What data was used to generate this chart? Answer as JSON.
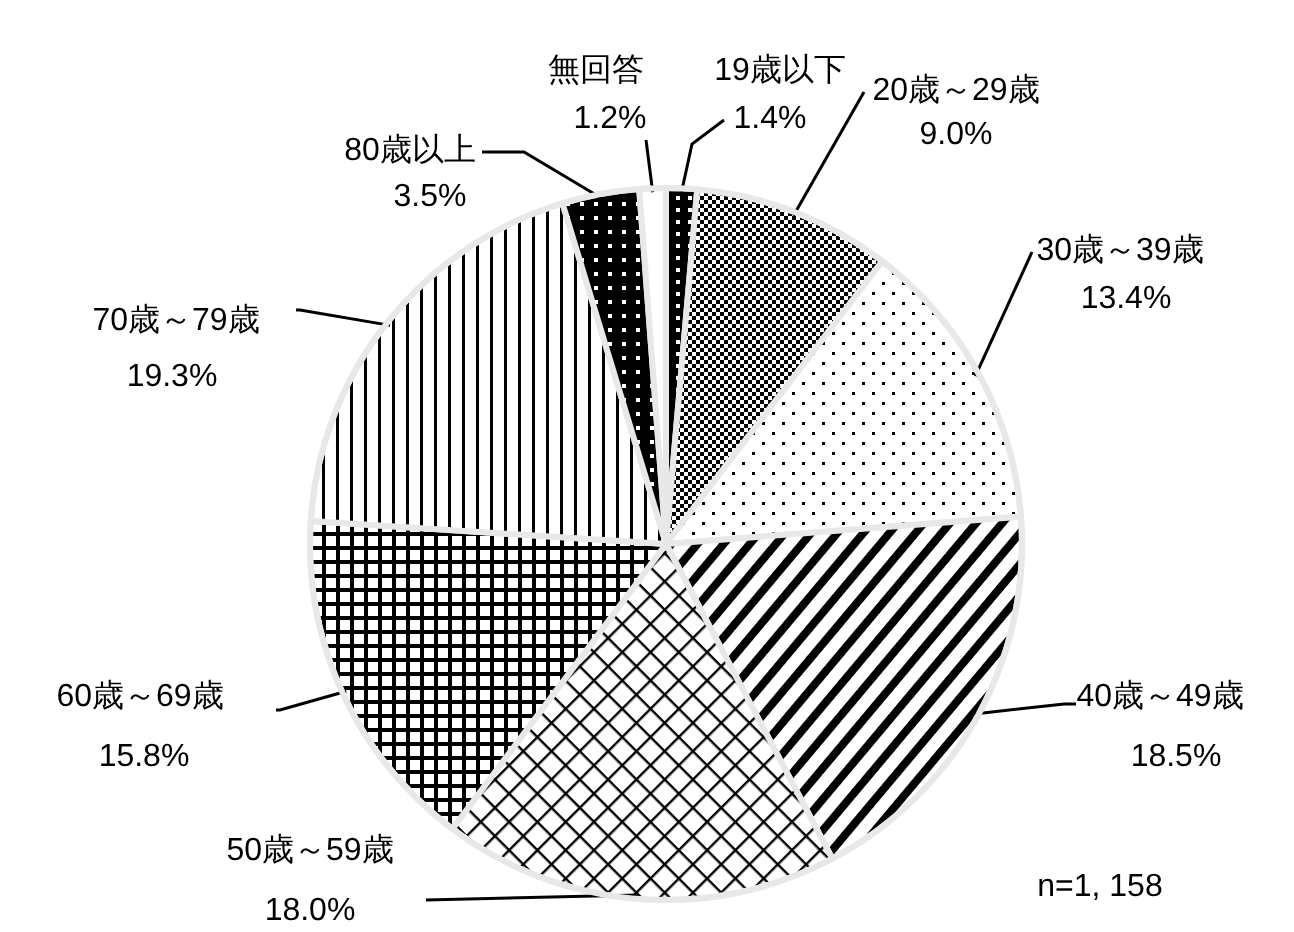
{
  "chart_data": {
    "type": "pie",
    "categories": [
      "19歳以下",
      "20歳～29歳",
      "30歳～39歳",
      "40歳～49歳",
      "50歳～59歳",
      "60歳～69歳",
      "70歳～79歳",
      "80歳以上",
      "無回答"
    ],
    "values": [
      1.4,
      9.0,
      13.4,
      18.5,
      18.0,
      15.8,
      19.3,
      3.5,
      1.2
    ],
    "value_labels": [
      "1.4%",
      "9.0%",
      "13.4%",
      "18.5%",
      "18.0%",
      "15.8%",
      "19.3%",
      "3.5%",
      "1.2%"
    ],
    "annotations": [
      "n=1, 158"
    ]
  }
}
